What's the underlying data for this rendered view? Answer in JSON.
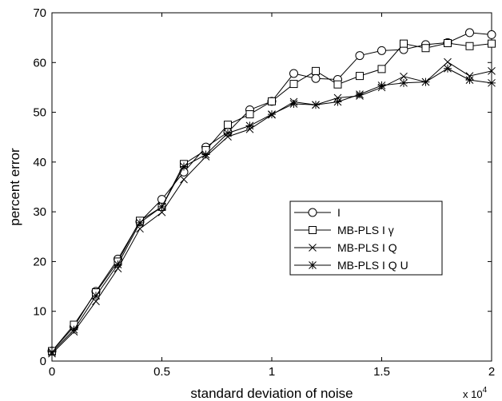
{
  "chart_data": {
    "type": "line",
    "title": "",
    "xlabel": "standard deviation of noise",
    "ylabel": "percent error",
    "x_scale_label": {
      "base": "x 10",
      "exponent": "4"
    },
    "xlim": [
      0,
      2
    ],
    "ylim": [
      0,
      70
    ],
    "x_ticks": [
      0,
      0.5,
      1,
      1.5,
      2
    ],
    "x_tick_labels": [
      "0",
      "0.5",
      "1",
      "1.5",
      "2"
    ],
    "y_ticks": [
      0,
      10,
      20,
      30,
      40,
      50,
      60,
      70
    ],
    "y_tick_labels": [
      "0",
      "10",
      "20",
      "30",
      "40",
      "50",
      "60",
      "70"
    ],
    "grid": false,
    "legend_position": "center-right",
    "x": [
      0,
      0.1,
      0.2,
      0.3,
      0.4,
      0.5,
      0.6,
      0.7,
      0.8,
      0.9,
      1.0,
      1.1,
      1.2,
      1.3,
      1.4,
      1.5,
      1.6,
      1.7,
      1.8,
      1.9,
      2.0
    ],
    "series": [
      {
        "name": "I",
        "marker": "circle",
        "values": [
          2.0,
          6.9,
          14.0,
          20.5,
          28.0,
          32.5,
          38.0,
          43.0,
          46.0,
          50.5,
          52.2,
          57.8,
          56.8,
          56.6,
          61.4,
          62.4,
          62.6,
          63.6,
          64.0,
          66.0,
          65.6
        ]
      },
      {
        "name": "MB-PLS I γ",
        "marker": "square",
        "values": [
          2.0,
          7.3,
          13.8,
          20.0,
          28.2,
          31.0,
          39.6,
          42.4,
          47.5,
          49.6,
          52.2,
          55.7,
          58.3,
          55.6,
          57.3,
          58.7,
          63.8,
          62.9,
          63.9,
          63.3,
          63.8
        ]
      },
      {
        "name": "MB-PLS I Q",
        "marker": "x",
        "values": [
          1.5,
          5.9,
          12.0,
          18.6,
          26.6,
          29.9,
          36.5,
          41.1,
          45.1,
          46.6,
          49.5,
          52.1,
          51.5,
          52.9,
          53.3,
          55.0,
          57.2,
          56.1,
          60.1,
          57.3,
          58.3
        ]
      },
      {
        "name": "MB-PLS I Q U",
        "marker": "asterisk",
        "values": [
          1.8,
          6.3,
          13.1,
          19.4,
          27.8,
          31.0,
          39.1,
          41.5,
          45.8,
          47.3,
          49.6,
          51.7,
          51.5,
          52.1,
          53.6,
          55.4,
          55.9,
          56.1,
          58.8,
          56.5,
          55.9
        ]
      }
    ]
  }
}
